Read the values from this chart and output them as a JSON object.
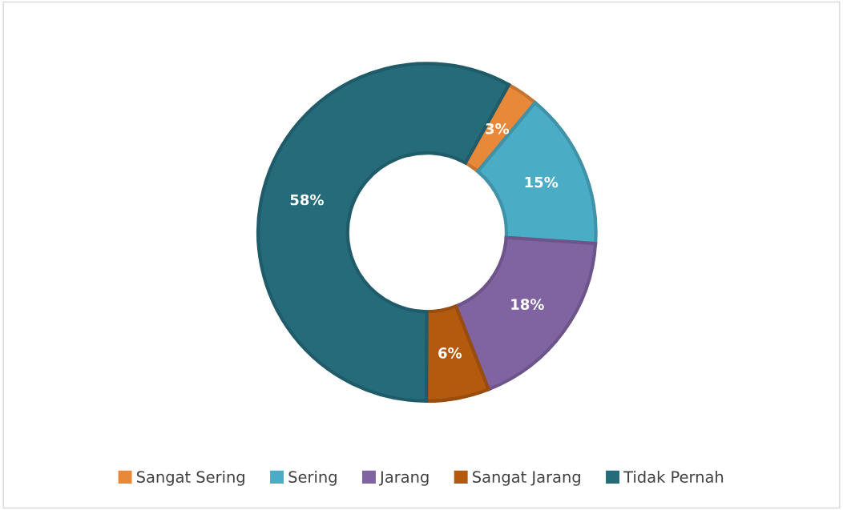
{
  "chart_data": {
    "type": "donut",
    "categories": [
      "Sangat Sering",
      "Sering",
      "Jarang",
      "Sangat Jarang",
      "Tidak Pernah"
    ],
    "values": [
      3,
      15,
      18,
      6,
      58
    ],
    "value_labels": [
      "3%",
      "15%",
      "18%",
      "6%",
      "58%"
    ],
    "colors": [
      "#e8893a",
      "#4bacc6",
      "#8064a2",
      "#b35a0f",
      "#256b7a"
    ],
    "legend": "bottom"
  }
}
